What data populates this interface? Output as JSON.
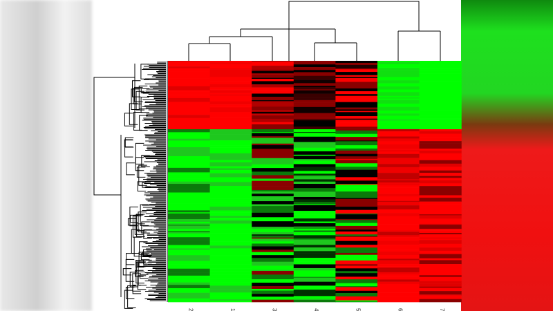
{
  "column_labels": [
    "2",
    "1",
    "3",
    "4",
    "5",
    "6",
    "7"
  ]
}
